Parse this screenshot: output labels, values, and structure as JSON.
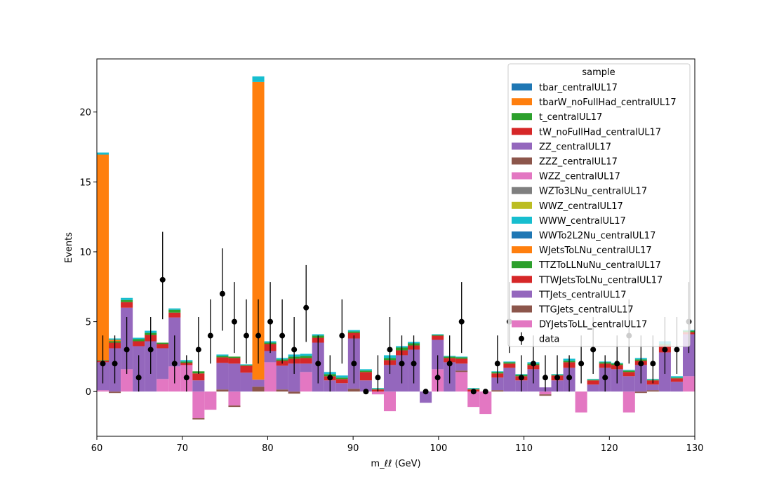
{
  "chart_data": {
    "type": "bar",
    "stacked": true,
    "x_edges_start": 60,
    "bin_width": 1.4,
    "n_bins": 50,
    "xlim": [
      60,
      130
    ],
    "ylim": [
      -3.2,
      23.8
    ],
    "xticks": [
      60,
      70,
      80,
      90,
      100,
      110,
      120,
      130
    ],
    "yticks": [
      0,
      5,
      10,
      15,
      20
    ],
    "xlabel": "m_ℓℓ (GeV)",
    "ylabel": "Events",
    "legend_title": "sample",
    "legend_position": "top-right",
    "data_label": "data",
    "series": [
      {
        "name": "tbar_centralUL17",
        "color": "#1f77b4",
        "values": []
      },
      {
        "name": "tbarW_noFullHad_centralUL17",
        "color": "#ff7f0e",
        "values": []
      },
      {
        "name": "t_centralUL17",
        "color": "#2ca02c",
        "values": []
      },
      {
        "name": "tW_noFullHad_centralUL17",
        "color": "#d62728",
        "values": []
      },
      {
        "name": "ZZ_centralUL17",
        "color": "#9467bd",
        "values": []
      },
      {
        "name": "ZZZ_centralUL17",
        "color": "#8c564b",
        "values": []
      },
      {
        "name": "WZZ_centralUL17",
        "color": "#e377c2",
        "values": []
      },
      {
        "name": "WZTo3LNu_centralUL17",
        "color": "#7f7f7f",
        "values": []
      },
      {
        "name": "WWZ_centralUL17",
        "color": "#bcbd22",
        "values": []
      },
      {
        "name": "WWW_centralUL17",
        "color": "#17becf",
        "values": []
      },
      {
        "name": "WWTo2L2Nu_centralUL17",
        "color": "#1f77b4",
        "values": []
      },
      {
        "name": "WJetsToLNu_centralUL17",
        "color": "#ff7f0e",
        "values": []
      },
      {
        "name": "TTZToLLNuNu_centralUL17",
        "color": "#2ca02c",
        "values": []
      },
      {
        "name": "TTWJetsToLNu_centralUL17",
        "color": "#d62728",
        "values": []
      },
      {
        "name": "TTJets_centralUL17",
        "color": "#9467bd",
        "values": []
      },
      {
        "name": "TTGJets_centralUL17",
        "color": "#8c564b",
        "values": []
      },
      {
        "name": "DYJetsToLL_centralUL17",
        "color": "#e377c2",
        "values": []
      }
    ],
    "stack_bins": [
      {
        "x": 60.0,
        "dy": 0.1,
        "ttg": 0.0,
        "tt": 2.0,
        "ttw": 0.1,
        "ttz": 0.05,
        "wjets": 14.7,
        "rest": 0.15
      },
      {
        "x": 61.4,
        "dy": 0.0,
        "ttg": -0.1,
        "tt": 3.1,
        "ttw": 0.4,
        "ttz": 0.1,
        "wjets": 0.1,
        "rest": 0.1
      },
      {
        "x": 62.8,
        "dy": 1.6,
        "ttg": 0.0,
        "tt": 4.4,
        "ttw": 0.4,
        "ttz": 0.15,
        "wjets": 0.0,
        "rest": 0.15
      },
      {
        "x": 64.2,
        "dy": 0.0,
        "ttg": 0.0,
        "tt": 3.25,
        "ttw": 0.35,
        "ttz": 0.15,
        "wjets": 0.0,
        "rest": 0.1
      },
      {
        "x": 65.6,
        "dy": 0.0,
        "ttg": 0.0,
        "tt": 3.6,
        "ttw": 0.45,
        "ttz": 0.15,
        "wjets": 0.0,
        "rest": 0.15
      },
      {
        "x": 67.0,
        "dy": 0.9,
        "ttg": 0.0,
        "tt": 2.2,
        "ttw": 0.3,
        "ttz": 0.1,
        "wjets": 0.0,
        "rest": 0.0
      },
      {
        "x": 68.4,
        "dy": 1.8,
        "ttg": 0.0,
        "tt": 3.5,
        "ttw": 0.35,
        "ttz": 0.2,
        "wjets": 0.0,
        "rest": 0.1
      },
      {
        "x": 69.8,
        "dy": 1.9,
        "ttg": 0.0,
        "tt": 0.0,
        "ttw": 0.15,
        "ttz": 0.1,
        "wjets": 0.0,
        "rest": 0.1
      },
      {
        "x": 71.2,
        "dy": -1.9,
        "ttg": -0.1,
        "tt": 0.8,
        "ttw": 0.5,
        "ttz": 0.15,
        "wjets": 0.0,
        "rest": 0.0
      },
      {
        "x": 72.6,
        "dy": -1.3,
        "ttg": 0.0,
        "tt": 0.0,
        "ttw": 0.0,
        "ttz": 0.0,
        "wjets": 0.0,
        "rest": 0.0
      },
      {
        "x": 74.0,
        "dy": 0.0,
        "ttg": 0.15,
        "tt": 1.9,
        "ttw": 0.4,
        "ttz": 0.1,
        "wjets": 0.0,
        "rest": 0.1
      },
      {
        "x": 75.4,
        "dy": -1.0,
        "ttg": -0.1,
        "tt": 2.0,
        "ttw": 0.4,
        "ttz": 0.1,
        "wjets": 0.0,
        "rest": 0.0
      },
      {
        "x": 76.8,
        "dy": 0.0,
        "ttg": 0.0,
        "tt": 1.35,
        "ttw": 0.5,
        "ttz": 0.05,
        "wjets": 0.0,
        "rest": 0.05
      },
      {
        "x": 78.2,
        "dy": 0.0,
        "ttg": 0.35,
        "tt": 0.5,
        "ttw": 0.0,
        "ttz": 0.0,
        "wjets": 21.3,
        "rest": 0.4
      },
      {
        "x": 79.6,
        "dy": 2.1,
        "ttg": 0.0,
        "tt": 0.8,
        "ttw": 0.5,
        "ttz": 0.1,
        "wjets": 0.0,
        "rest": 0.1
      },
      {
        "x": 81.0,
        "dy": 0.0,
        "ttg": 0.15,
        "tt": 1.7,
        "ttw": 0.35,
        "ttz": 0.1,
        "wjets": 0.0,
        "rest": 0.1
      },
      {
        "x": 82.4,
        "dy": 0.0,
        "ttg": -0.15,
        "tt": 2.0,
        "ttw": 0.35,
        "ttz": 0.15,
        "wjets": 0.0,
        "rest": 0.15
      },
      {
        "x": 83.8,
        "dy": 1.4,
        "ttg": 0.0,
        "tt": 0.6,
        "ttw": 0.4,
        "ttz": 0.15,
        "wjets": 0.0,
        "rest": 0.15
      },
      {
        "x": 85.2,
        "dy": 0.0,
        "ttg": 0.0,
        "tt": 3.5,
        "ttw": 0.35,
        "ttz": 0.15,
        "wjets": 0.0,
        "rest": 0.1
      },
      {
        "x": 86.6,
        "dy": 0.0,
        "ttg": 0.0,
        "tt": 0.8,
        "ttw": 0.3,
        "ttz": 0.15,
        "wjets": 0.0,
        "rest": 0.15
      },
      {
        "x": 88.0,
        "dy": 0.0,
        "ttg": 0.0,
        "tt": 0.6,
        "ttw": 0.3,
        "ttz": 0.1,
        "wjets": 0.0,
        "rest": 0.15
      },
      {
        "x": 89.4,
        "dy": 0.0,
        "ttg": 0.2,
        "tt": 3.6,
        "ttw": 0.4,
        "ttz": 0.1,
        "wjets": 0.0,
        "rest": 0.1
      },
      {
        "x": 90.8,
        "dy": 0.0,
        "ttg": 0.0,
        "tt": 0.8,
        "ttw": 0.6,
        "ttz": 0.1,
        "wjets": 0.0,
        "rest": 0.1
      },
      {
        "x": 92.2,
        "dy": -0.2,
        "ttg": 0.0,
        "tt": 0.0,
        "ttw": 0.15,
        "ttz": 0.05,
        "wjets": 0.0,
        "rest": 0.05
      },
      {
        "x": 93.6,
        "dy": -1.4,
        "ttg": 0.0,
        "tt": 1.9,
        "ttw": 0.35,
        "ttz": 0.15,
        "wjets": 0.0,
        "rest": 0.2
      },
      {
        "x": 95.0,
        "dy": 0.0,
        "ttg": 0.0,
        "tt": 2.6,
        "ttw": 0.35,
        "ttz": 0.2,
        "wjets": 0.0,
        "rest": 0.1
      },
      {
        "x": 96.4,
        "dy": 0.0,
        "ttg": 0.0,
        "tt": 3.0,
        "ttw": 0.3,
        "ttz": 0.15,
        "wjets": 0.0,
        "rest": 0.1
      },
      {
        "x": 97.8,
        "dy": 0.0,
        "ttg": 0.0,
        "tt": -0.8,
        "ttw": 0.0,
        "ttz": 0.0,
        "wjets": 0.0,
        "rest": 0.0
      },
      {
        "x": 99.2,
        "dy": 1.6,
        "ttg": 0.0,
        "tt": 2.1,
        "ttw": 0.3,
        "ttz": 0.05,
        "wjets": 0.0,
        "rest": 0.05
      },
      {
        "x": 100.6,
        "dy": 0.0,
        "ttg": 0.0,
        "tt": 2.1,
        "ttw": 0.3,
        "ttz": 0.1,
        "wjets": 0.0,
        "rest": 0.05
      },
      {
        "x": 102.0,
        "dy": 1.4,
        "ttg": 0.1,
        "tt": 0.5,
        "ttw": 0.35,
        "ttz": 0.1,
        "wjets": 0.0,
        "rest": 0.05
      },
      {
        "x": 103.4,
        "dy": -1.1,
        "ttg": 0.0,
        "tt": 0.0,
        "ttw": 0.15,
        "ttz": 0.05,
        "wjets": 0.0,
        "rest": 0.05
      },
      {
        "x": 104.8,
        "dy": -1.6,
        "ttg": 0.0,
        "tt": 0.0,
        "ttw": 0.0,
        "ttz": 0.0,
        "wjets": 0.0,
        "rest": 0.0
      },
      {
        "x": 106.2,
        "dy": 0.0,
        "ttg": 0.1,
        "tt": 0.9,
        "ttw": 0.3,
        "ttz": 0.1,
        "wjets": 0.0,
        "rest": 0.05
      },
      {
        "x": 107.6,
        "dy": 0.0,
        "ttg": 0.0,
        "tt": 1.7,
        "ttw": 0.3,
        "ttz": 0.1,
        "wjets": 0.0,
        "rest": 0.05
      },
      {
        "x": 109.0,
        "dy": 0.0,
        "ttg": 0.0,
        "tt": 0.8,
        "ttw": 0.3,
        "ttz": 0.1,
        "wjets": 0.0,
        "rest": 0.05
      },
      {
        "x": 110.4,
        "dy": 0.0,
        "ttg": 0.0,
        "tt": 1.6,
        "ttw": 0.3,
        "ttz": 0.1,
        "wjets": 0.0,
        "rest": 0.1
      },
      {
        "x": 111.8,
        "dy": -0.2,
        "ttg": -0.1,
        "tt": 0.3,
        "ttw": 0.0,
        "ttz": 0.0,
        "wjets": 0.0,
        "rest": 0.0
      },
      {
        "x": 113.2,
        "dy": 0.0,
        "ttg": 0.0,
        "tt": 0.8,
        "ttw": 0.35,
        "ttz": 0.05,
        "wjets": 0.0,
        "rest": 0.05
      },
      {
        "x": 114.6,
        "dy": 0.0,
        "ttg": 0.0,
        "tt": 1.7,
        "ttw": 0.4,
        "ttz": 0.1,
        "wjets": 0.0,
        "rest": 0.15
      },
      {
        "x": 116.0,
        "dy": -1.5,
        "ttg": 0.0,
        "tt": 0.0,
        "ttw": 0.0,
        "ttz": 0.0,
        "wjets": 0.0,
        "rest": 0.0
      },
      {
        "x": 117.4,
        "dy": 0.0,
        "ttg": 0.0,
        "tt": 0.5,
        "ttw": 0.3,
        "ttz": 0.05,
        "wjets": 0.0,
        "rest": 0.05
      },
      {
        "x": 118.8,
        "dy": 0.0,
        "ttg": 0.0,
        "tt": 1.7,
        "ttw": 0.3,
        "ttz": 0.1,
        "wjets": 0.0,
        "rest": 0.05
      },
      {
        "x": 120.2,
        "dy": 0.0,
        "ttg": 0.0,
        "tt": 1.6,
        "ttw": 0.3,
        "ttz": 0.1,
        "wjets": 0.0,
        "rest": 0.05
      },
      {
        "x": 121.6,
        "dy": -1.5,
        "ttg": 0.0,
        "tt": 1.1,
        "ttw": 0.3,
        "ttz": 0.1,
        "wjets": 0.0,
        "rest": 0.05
      },
      {
        "x": 123.0,
        "dy": 0.0,
        "ttg": -0.1,
        "tt": 1.9,
        "ttw": 0.3,
        "ttz": 0.1,
        "wjets": 0.0,
        "rest": 0.1
      },
      {
        "x": 124.4,
        "dy": 0.0,
        "ttg": 0.1,
        "tt": 0.4,
        "ttw": 0.3,
        "ttz": 0.05,
        "wjets": 0.0,
        "rest": 0.05
      },
      {
        "x": 125.8,
        "dy": 0.0,
        "ttg": 0.0,
        "tt": 2.8,
        "ttw": 0.5,
        "ttz": 0.1,
        "wjets": 0.0,
        "rest": 0.2
      },
      {
        "x": 127.2,
        "dy": 0.0,
        "ttg": 0.0,
        "tt": 0.7,
        "ttw": 0.25,
        "ttz": 0.05,
        "wjets": 0.0,
        "rest": 0.1
      },
      {
        "x": 128.6,
        "dy": 1.1,
        "ttg": 0.0,
        "tt": 3.0,
        "ttw": 0.15,
        "ttz": 0.1,
        "wjets": 0.0,
        "rest": 0.05
      }
    ],
    "data_points": [
      {
        "x": 60.7,
        "y": 2
      },
      {
        "x": 62.1,
        "y": 2
      },
      {
        "x": 63.5,
        "y": 3
      },
      {
        "x": 64.9,
        "y": 1
      },
      {
        "x": 66.3,
        "y": 3
      },
      {
        "x": 67.7,
        "y": 8
      },
      {
        "x": 69.1,
        "y": 2
      },
      {
        "x": 70.5,
        "y": 1
      },
      {
        "x": 71.9,
        "y": 3
      },
      {
        "x": 73.3,
        "y": 4
      },
      {
        "x": 74.7,
        "y": 7
      },
      {
        "x": 76.1,
        "y": 5
      },
      {
        "x": 77.5,
        "y": 4
      },
      {
        "x": 78.9,
        "y": 4
      },
      {
        "x": 80.3,
        "y": 5
      },
      {
        "x": 81.7,
        "y": 4
      },
      {
        "x": 83.1,
        "y": 3
      },
      {
        "x": 84.5,
        "y": 6
      },
      {
        "x": 85.9,
        "y": 2
      },
      {
        "x": 87.3,
        "y": 1
      },
      {
        "x": 88.7,
        "y": 4
      },
      {
        "x": 90.1,
        "y": 2
      },
      {
        "x": 91.5,
        "y": 0
      },
      {
        "x": 92.9,
        "y": 1
      },
      {
        "x": 94.3,
        "y": 3
      },
      {
        "x": 95.7,
        "y": 2
      },
      {
        "x": 97.1,
        "y": 2
      },
      {
        "x": 98.5,
        "y": 0
      },
      {
        "x": 99.9,
        "y": 1
      },
      {
        "x": 101.3,
        "y": 2
      },
      {
        "x": 102.7,
        "y": 5
      },
      {
        "x": 104.1,
        "y": 0
      },
      {
        "x": 105.5,
        "y": 0
      },
      {
        "x": 106.9,
        "y": 2
      },
      {
        "x": 108.3,
        "y": 5
      },
      {
        "x": 109.7,
        "y": 1
      },
      {
        "x": 111.1,
        "y": 2
      },
      {
        "x": 112.5,
        "y": 1
      },
      {
        "x": 113.9,
        "y": 1
      },
      {
        "x": 115.3,
        "y": 1
      },
      {
        "x": 116.7,
        "y": 2
      },
      {
        "x": 118.1,
        "y": 3
      },
      {
        "x": 119.5,
        "y": 1
      },
      {
        "x": 120.9,
        "y": 2
      },
      {
        "x": 122.3,
        "y": 4
      },
      {
        "x": 123.7,
        "y": 2
      },
      {
        "x": 125.1,
        "y": 2
      },
      {
        "x": 126.5,
        "y": 3
      },
      {
        "x": 127.9,
        "y": 3
      },
      {
        "x": 129.3,
        "y": 5
      }
    ]
  }
}
